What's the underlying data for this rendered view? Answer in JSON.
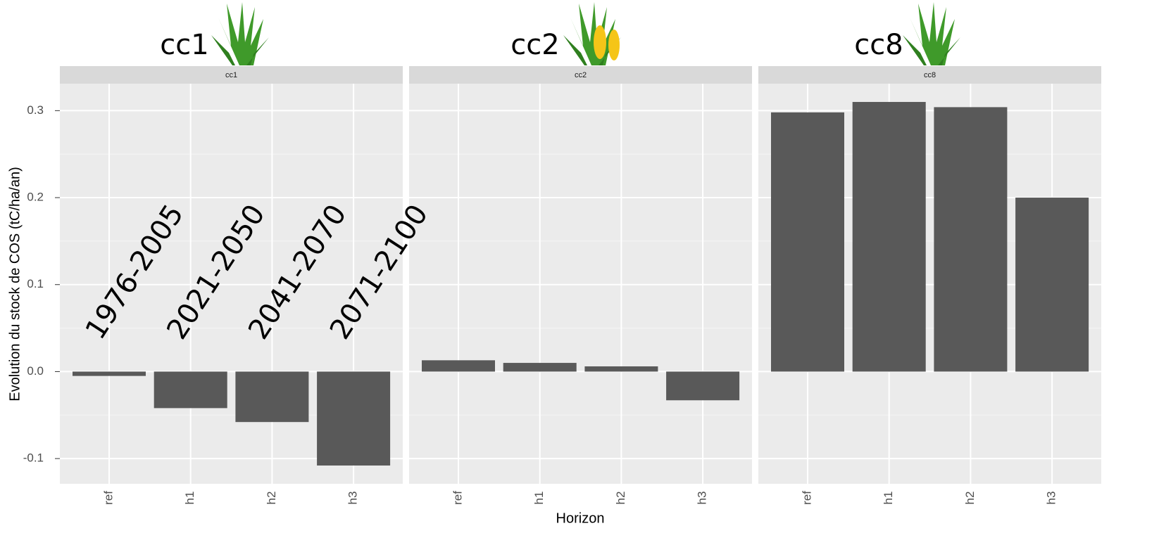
{
  "chart_data": {
    "type": "bar",
    "y_label": "Evolution du stock de COS (tC/ha/an)",
    "x_label": "Horizon",
    "categories": [
      "ref",
      "h1",
      "h2",
      "h3"
    ],
    "period_labels": [
      "1976-2005",
      "2021-2050",
      "2041-2070",
      "2071-2100"
    ],
    "color": "#595959",
    "grid": true,
    "ylim": [
      -0.129,
      0.331
    ],
    "yticks": [
      -0.1,
      {
        "value": 0,
        "label": "0.0"
      },
      0.1,
      0.2,
      0.3
    ],
    "panels": [
      {
        "label": "cc1",
        "strip": "cc1",
        "values": [
          -0.005,
          -0.042,
          -0.058,
          -0.108
        ]
      },
      {
        "label": "cc2",
        "strip": "cc2",
        "values": [
          0.013,
          0.01,
          0.006,
          -0.033
        ]
      },
      {
        "label": "cc8",
        "strip": "cc8",
        "values": [
          0.298,
          0.31,
          0.304,
          0.2
        ]
      }
    ]
  }
}
